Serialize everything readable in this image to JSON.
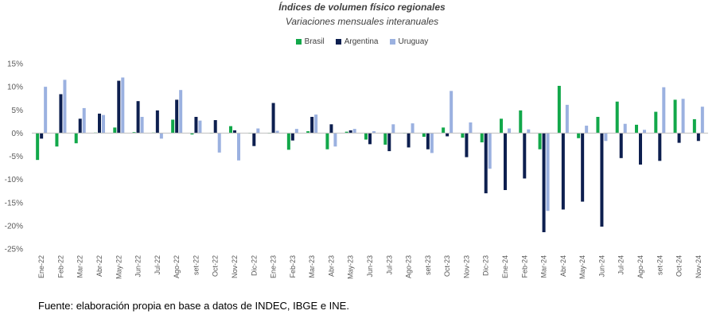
{
  "chart_data": {
    "type": "bar",
    "title": "Índices de volumen físico regionales",
    "subtitle": "Variaciones mensuales interanuales",
    "xlabel": "",
    "ylabel": "",
    "ylim": [
      -25,
      15
    ],
    "yticks": [
      15,
      10,
      5,
      0,
      -5,
      -10,
      -15,
      -20,
      -25
    ],
    "ytick_labels": [
      "15%",
      "10%",
      "5%",
      "0%",
      "-5%",
      "-10%",
      "-15%",
      "-20%",
      "-25%"
    ],
    "grid": false,
    "legend_position": "top-center",
    "categories": [
      "Ene-22",
      "Feb-22",
      "Mar-22",
      "Abr-22",
      "May-22",
      "Jun-22",
      "Jul-22",
      "Ago-22",
      "set-22",
      "Oct-22",
      "Nov-22",
      "Dic-22",
      "Ene-23",
      "Feb-23",
      "Mar-23",
      "Abr-23",
      "May-23",
      "Jun-23",
      "Jul-23",
      "Ago-23",
      "set-23",
      "Oct-23",
      "Nov-23",
      "Dic-23",
      "Ene-24",
      "Feb-24",
      "Mar-24",
      "Abr-24",
      "May-24",
      "Jun-24",
      "Jul-24",
      "Ago-24",
      "set-24",
      "Oct-24",
      "Nov-24"
    ],
    "series": [
      {
        "name": "Brasil",
        "color": "#12a84a",
        "values": [
          -5.8,
          -2.9,
          -2.2,
          0.1,
          1.2,
          0.2,
          0.1,
          2.9,
          -0.3,
          0.0,
          1.5,
          0.0,
          0.0,
          -3.6,
          0.4,
          -3.5,
          0.3,
          -1.4,
          -2.5,
          0.0,
          -0.8,
          1.2,
          -1.0,
          -2.0,
          3.1,
          4.9,
          -3.5,
          10.2,
          -1.1,
          3.5,
          6.8,
          1.8,
          4.6,
          7.2,
          3.0
        ]
      },
      {
        "name": "Argentina",
        "color": "#0d1f4f",
        "values": [
          -1.2,
          8.4,
          3.1,
          4.2,
          11.3,
          6.9,
          4.9,
          7.2,
          3.5,
          2.8,
          0.6,
          -2.8,
          6.5,
          -1.6,
          3.5,
          1.9,
          0.6,
          -2.4,
          -3.9,
          -3.1,
          -3.5,
          -0.7,
          -5.2,
          -13.0,
          -12.3,
          -9.8,
          -21.4,
          -16.5,
          -14.8,
          -20.2,
          -5.4,
          -6.8,
          -6.0,
          -2.1,
          -1.7
        ]
      },
      {
        "name": "Uruguay",
        "color": "#9bb1e0",
        "values": [
          10.0,
          11.5,
          5.4,
          3.9,
          12.0,
          3.5,
          -1.2,
          9.3,
          2.7,
          -4.2,
          -5.9,
          1.0,
          0.5,
          0.9,
          4.0,
          -2.9,
          0.9,
          0.4,
          1.9,
          2.1,
          -4.3,
          9.1,
          2.3,
          -7.7,
          1.0,
          0.8,
          -16.8,
          6.1,
          1.6,
          -1.7,
          2.0,
          0.7,
          9.9,
          7.4,
          5.7
        ]
      }
    ]
  },
  "footer": {
    "source_text": "Fuente: elaboración propia en base a datos de INDEC, IBGE e INE."
  }
}
